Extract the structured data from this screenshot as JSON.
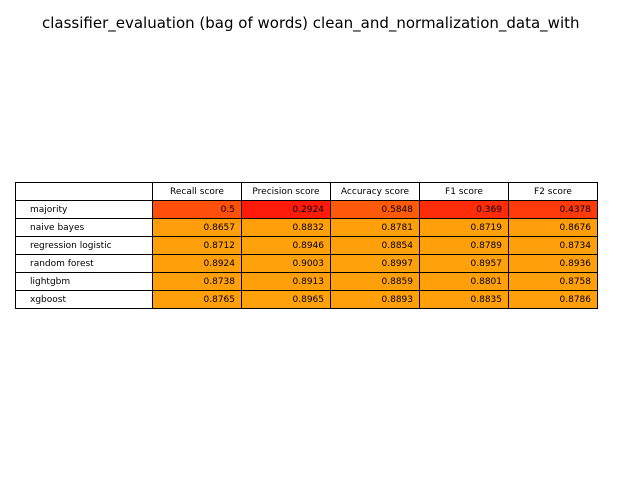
{
  "title": "classifier_evaluation (bag of words) clean_and_normalization_data_with",
  "chart_data": {
    "type": "table",
    "title": "classifier_evaluation (bag of words) clean_and_normalization_data_with",
    "columns": [
      "Recall score",
      "Precision score",
      "Accuracy score",
      "F1 score",
      "F2 score"
    ],
    "rows": [
      {
        "label": "majority",
        "values": [
          "0.5",
          "0.2924",
          "0.5848",
          "0.369",
          "0.4378"
        ],
        "colors": [
          "#ff4f0a",
          "#ff1a0a",
          "#ff5a0a",
          "#ff2c0a",
          "#ff3a0a"
        ]
      },
      {
        "label": "naive bayes",
        "values": [
          "0.8657",
          "0.8832",
          "0.8781",
          "0.8719",
          "0.8676"
        ],
        "colors": [
          "#ff9e0a",
          "#ff9f0a",
          "#ff9f0a",
          "#ff9f0a",
          "#ff9e0a"
        ]
      },
      {
        "label": "regression logistic",
        "values": [
          "0.8712",
          "0.8946",
          "0.8854",
          "0.8789",
          "0.8734"
        ],
        "colors": [
          "#ff9f0a",
          "#ffa10a",
          "#ff9f0a",
          "#ff9f0a",
          "#ff9f0a"
        ]
      },
      {
        "label": "random forest",
        "values": [
          "0.8924",
          "0.9003",
          "0.8997",
          "0.8957",
          "0.8936"
        ],
        "colors": [
          "#ffa00a",
          "#ffa10a",
          "#ffa10a",
          "#ffa10a",
          "#ffa00a"
        ]
      },
      {
        "label": "lightgbm",
        "values": [
          "0.8738",
          "0.8913",
          "0.8859",
          "0.8801",
          "0.8758"
        ],
        "colors": [
          "#ff9f0a",
          "#ffa00a",
          "#ff9f0a",
          "#ff9f0a",
          "#ff9f0a"
        ]
      },
      {
        "label": "xgboost",
        "values": [
          "0.8765",
          "0.8965",
          "0.8893",
          "0.8835",
          "0.8786"
        ],
        "colors": [
          "#ff9f0a",
          "#ffa10a",
          "#ffa00a",
          "#ff9f0a",
          "#ff9f0a"
        ]
      }
    ]
  }
}
